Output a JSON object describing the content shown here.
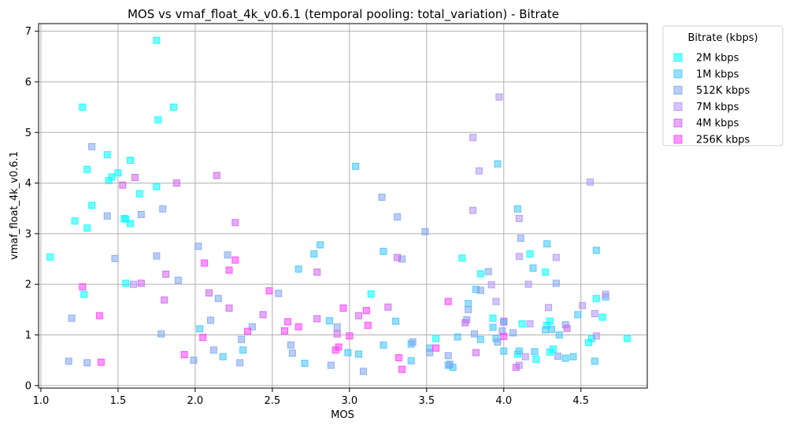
{
  "chart_data": {
    "type": "scatter",
    "title": "MOS vs vmaf_float_4k_v0.6.1 (temporal pooling: total_variation) - Bitrate",
    "xlabel": "MOS",
    "ylabel": "vmaf_float_4k_v0.6.1",
    "xlim": [
      0.985,
      4.93
    ],
    "ylim": [
      -0.05,
      7.15
    ],
    "xticks": [
      "1.0",
      "1.5",
      "2.0",
      "2.5",
      "3.0",
      "3.5",
      "4.0",
      "4.5"
    ],
    "yticks": [
      "0",
      "1",
      "2",
      "3",
      "4",
      "5",
      "6",
      "7"
    ],
    "grid": true,
    "marker": "square",
    "legend": {
      "title": "Bitrate (kbps)",
      "placement": "outside-right-top"
    },
    "series": [
      {
        "name": "2M kbps",
        "color": "#00ffff",
        "points": [
          [
            1.06,
            2.54
          ],
          [
            1.22,
            3.25
          ],
          [
            1.27,
            5.5
          ],
          [
            1.28,
            1.8
          ],
          [
            1.3,
            3.11
          ],
          [
            1.3,
            4.27
          ],
          [
            1.33,
            3.56
          ],
          [
            1.43,
            4.56
          ],
          [
            1.44,
            4.05
          ],
          [
            1.46,
            4.12
          ],
          [
            1.5,
            4.2
          ],
          [
            1.54,
            3.3
          ],
          [
            1.55,
            2.02
          ],
          [
            1.55,
            3.29
          ],
          [
            1.58,
            3.2
          ],
          [
            1.58,
            4.45
          ],
          [
            1.64,
            3.79
          ],
          [
            1.75,
            3.93
          ],
          [
            1.75,
            6.82
          ],
          [
            1.76,
            5.25
          ],
          [
            1.86,
            5.5
          ],
          [
            3.14,
            1.81
          ],
          [
            3.56,
            0.93
          ],
          [
            3.73,
            2.52
          ],
          [
            3.85,
            2.21
          ],
          [
            3.93,
            1.33
          ],
          [
            4.0,
            1.25
          ],
          [
            4.09,
            0.62
          ],
          [
            4.12,
            1.22
          ],
          [
            4.17,
            2.6
          ],
          [
            4.21,
            0.52
          ],
          [
            4.27,
            2.24
          ],
          [
            4.28,
            1.19
          ],
          [
            4.3,
            1.27
          ],
          [
            4.3,
            0.66
          ],
          [
            4.32,
            0.72
          ],
          [
            4.55,
            0.85
          ],
          [
            4.57,
            0.93
          ],
          [
            4.6,
            1.72
          ],
          [
            4.64,
            1.35
          ],
          [
            4.8,
            0.93
          ]
        ]
      },
      {
        "name": "1M kbps",
        "color": "#40c4ff",
        "points": [
          [
            2.03,
            1.12
          ],
          [
            2.18,
            0.57
          ],
          [
            2.31,
            0.7
          ],
          [
            2.67,
            2.3
          ],
          [
            2.71,
            0.44
          ],
          [
            2.77,
            2.6
          ],
          [
            2.81,
            2.78
          ],
          [
            2.87,
            1.28
          ],
          [
            2.99,
            0.65
          ],
          [
            3.04,
            4.33
          ],
          [
            3.06,
            0.62
          ],
          [
            3.22,
            2.65
          ],
          [
            3.22,
            0.8
          ],
          [
            3.3,
            1.27
          ],
          [
            3.4,
            0.82
          ],
          [
            3.4,
            0.49
          ],
          [
            3.52,
            0.74
          ],
          [
            3.64,
            0.4
          ],
          [
            3.67,
            0.36
          ],
          [
            3.7,
            0.96
          ],
          [
            3.77,
            1.62
          ],
          [
            3.82,
            1.9
          ],
          [
            3.93,
            1.15
          ],
          [
            3.96,
            4.38
          ],
          [
            4.0,
            0.68
          ],
          [
            4.09,
            3.49
          ],
          [
            4.1,
            0.68
          ],
          [
            4.19,
            2.32
          ],
          [
            4.27,
            1.1
          ],
          [
            4.28,
            2.8
          ],
          [
            4.31,
            1.11
          ],
          [
            4.36,
            1.0
          ],
          [
            4.4,
            0.54
          ],
          [
            4.45,
            0.57
          ],
          [
            4.48,
            1.4
          ],
          [
            4.6,
            2.67
          ],
          [
            4.66,
            1.75
          ],
          [
            4.59,
            0.48
          ],
          [
            4.2,
            0.67
          ],
          [
            3.95,
            0.93
          ],
          [
            3.85,
            0.91
          ]
        ]
      },
      {
        "name": "512K kbps",
        "color": "#7fa6ee",
        "points": [
          [
            1.18,
            0.48
          ],
          [
            1.2,
            1.33
          ],
          [
            1.3,
            0.45
          ],
          [
            1.33,
            4.72
          ],
          [
            1.43,
            3.35
          ],
          [
            1.48,
            2.51
          ],
          [
            1.65,
            3.38
          ],
          [
            1.75,
            2.56
          ],
          [
            1.78,
            1.02
          ],
          [
            1.79,
            3.49
          ],
          [
            1.89,
            2.08
          ],
          [
            1.99,
            0.5
          ],
          [
            2.02,
            2.75
          ],
          [
            2.1,
            1.29
          ],
          [
            2.12,
            0.7
          ],
          [
            2.15,
            1.72
          ],
          [
            2.21,
            2.58
          ],
          [
            2.29,
            0.45
          ],
          [
            2.3,
            0.91
          ],
          [
            2.37,
            1.16
          ],
          [
            2.54,
            1.82
          ],
          [
            2.62,
            0.8
          ],
          [
            2.63,
            0.64
          ],
          [
            2.88,
            0.4
          ],
          [
            2.92,
            1.16
          ],
          [
            3.09,
            0.28
          ],
          [
            3.21,
            3.72
          ],
          [
            3.31,
            3.33
          ],
          [
            3.34,
            2.5
          ],
          [
            3.41,
            0.86
          ],
          [
            3.49,
            3.04
          ],
          [
            3.52,
            0.65
          ],
          [
            3.65,
            0.42
          ],
          [
            3.76,
            1.3
          ],
          [
            3.77,
            1.5
          ],
          [
            3.81,
            1.02
          ],
          [
            3.85,
            1.88
          ],
          [
            3.9,
            2.25
          ],
          [
            3.96,
            0.86
          ],
          [
            3.99,
            1.08
          ],
          [
            4.06,
            1.04
          ],
          [
            4.11,
            2.91
          ],
          [
            4.34,
            2.02
          ],
          [
            4.4,
            1.2
          ],
          [
            4.35,
            0.58
          ],
          [
            3.64,
            0.59
          ]
        ]
      },
      {
        "name": "7M kbps",
        "color": "#b294f4",
        "points": [
          [
            1.6,
            2.0
          ],
          [
            3.8,
            4.9
          ],
          [
            3.8,
            3.46
          ],
          [
            3.84,
            4.24
          ],
          [
            3.92,
            1.99
          ],
          [
            3.95,
            1.66
          ],
          [
            3.97,
            5.7
          ],
          [
            4.1,
            3.3
          ],
          [
            4.1,
            2.55
          ],
          [
            4.1,
            0.4
          ],
          [
            4.16,
            2.0
          ],
          [
            4.17,
            1.22
          ],
          [
            4.29,
            1.54
          ],
          [
            4.34,
            2.53
          ],
          [
            4.51,
            1.58
          ],
          [
            4.56,
            4.02
          ],
          [
            4.59,
            1.42
          ],
          [
            4.6,
            0.98
          ],
          [
            4.66,
            1.8
          ],
          [
            4.14,
            0.57
          ]
        ]
      },
      {
        "name": "4M kbps",
        "color": "#d065ee",
        "points": [
          [
            1.53,
            3.96
          ],
          [
            1.61,
            4.11
          ],
          [
            1.65,
            2.02
          ],
          [
            1.8,
            1.69
          ],
          [
            1.81,
            2.2
          ],
          [
            1.88,
            4.0
          ],
          [
            2.14,
            4.15
          ],
          [
            2.09,
            1.83
          ],
          [
            2.22,
            1.53
          ],
          [
            2.26,
            3.22
          ],
          [
            2.44,
            1.4
          ],
          [
            2.79,
            2.24
          ],
          [
            2.79,
            1.32
          ],
          [
            2.92,
            1.02
          ],
          [
            3.06,
            1.38
          ],
          [
            3.25,
            1.55
          ],
          [
            3.31,
            2.53
          ],
          [
            3.75,
            1.24
          ],
          [
            3.82,
            0.65
          ],
          [
            4.0,
            1.27
          ],
          [
            4.08,
            0.36
          ],
          [
            4.41,
            1.13
          ]
        ]
      },
      {
        "name": "256K kbps",
        "color": "#ff40ff",
        "points": [
          [
            1.27,
            1.95
          ],
          [
            1.38,
            1.38
          ],
          [
            1.39,
            0.46
          ],
          [
            1.93,
            0.61
          ],
          [
            2.05,
            0.95
          ],
          [
            2.06,
            2.42
          ],
          [
            2.22,
            2.28
          ],
          [
            2.26,
            2.48
          ],
          [
            2.34,
            1.07
          ],
          [
            2.48,
            1.87
          ],
          [
            2.58,
            1.08
          ],
          [
            2.6,
            1.26
          ],
          [
            2.67,
            1.16
          ],
          [
            2.91,
            0.7
          ],
          [
            2.93,
            0.76
          ],
          [
            2.96,
            1.53
          ],
          [
            3.11,
            1.48
          ],
          [
            3.12,
            1.19
          ],
          [
            3.32,
            0.55
          ],
          [
            3.34,
            0.32
          ],
          [
            3.56,
            0.74
          ],
          [
            3.64,
            1.66
          ],
          [
            4.0,
            0.97
          ],
          [
            3.0,
            0.98
          ]
        ]
      }
    ]
  }
}
